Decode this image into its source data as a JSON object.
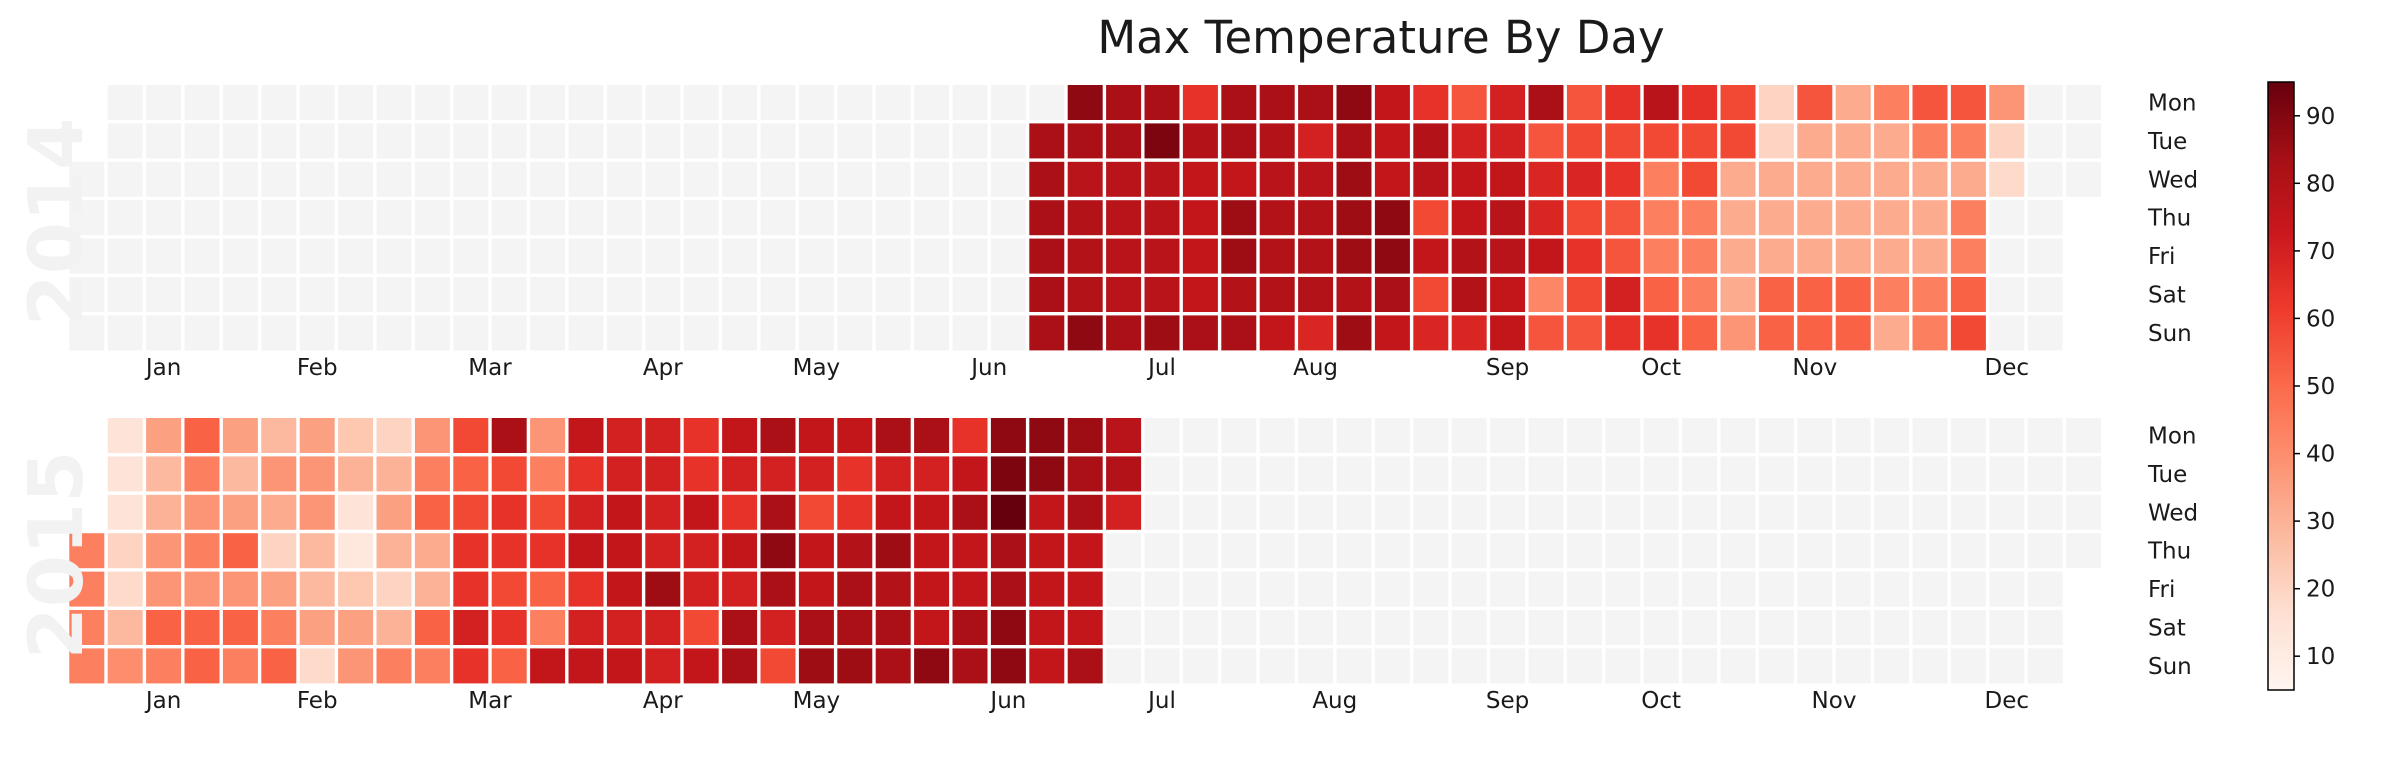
{
  "chart_data": {
    "type": "heatmap",
    "title": "Max Temperature By Day",
    "day_labels": [
      "Mon",
      "Tue",
      "Wed",
      "Thu",
      "Fri",
      "Sat",
      "Sun"
    ],
    "month_labels": [
      "Jan",
      "Feb",
      "Mar",
      "Apr",
      "May",
      "Jun",
      "Jul",
      "Aug",
      "Sep",
      "Oct",
      "Nov",
      "Dec"
    ],
    "colorbar": {
      "min": 5,
      "max": 95,
      "ticks": [
        10,
        20,
        30,
        40,
        50,
        60,
        70,
        80,
        90
      ],
      "colormap": "Reds"
    },
    "empty_color": "#f4f4f4",
    "years": [
      {
        "year": "2014",
        "start_date": "2014-06-24",
        "weeks": [
          [
            null,
            82,
            82,
            82,
            82,
            82,
            82
          ],
          [
            88,
            82,
            78,
            80,
            80,
            80,
            88
          ],
          [
            82,
            82,
            78,
            78,
            78,
            78,
            82
          ],
          [
            82,
            91,
            78,
            78,
            78,
            78,
            85
          ],
          [
            64,
            80,
            75,
            75,
            75,
            75,
            82
          ],
          [
            82,
            82,
            75,
            85,
            85,
            80,
            82
          ],
          [
            82,
            80,
            78,
            80,
            80,
            80,
            75
          ],
          [
            82,
            70,
            78,
            80,
            80,
            80,
            68
          ],
          [
            88,
            82,
            85,
            85,
            85,
            80,
            85
          ],
          [
            75,
            75,
            75,
            88,
            88,
            82,
            75
          ],
          [
            64,
            80,
            78,
            58,
            75,
            58,
            68
          ],
          [
            55,
            70,
            75,
            75,
            80,
            80,
            68
          ],
          [
            70,
            70,
            75,
            78,
            78,
            75,
            75
          ],
          [
            82,
            55,
            68,
            68,
            75,
            42,
            55
          ],
          [
            55,
            58,
            68,
            58,
            64,
            58,
            55
          ],
          [
            64,
            58,
            64,
            55,
            55,
            70,
            64
          ],
          [
            78,
            58,
            44,
            44,
            44,
            52,
            64
          ],
          [
            64,
            58,
            58,
            44,
            44,
            44,
            52
          ],
          [
            58,
            58,
            32,
            32,
            32,
            32,
            38
          ],
          [
            20,
            20,
            32,
            32,
            32,
            52,
            52
          ],
          [
            55,
            32,
            32,
            32,
            32,
            52,
            52
          ],
          [
            32,
            32,
            32,
            32,
            32,
            52,
            52
          ],
          [
            44,
            32,
            32,
            32,
            32,
            44,
            32
          ],
          [
            55,
            44,
            32,
            32,
            32,
            44,
            44
          ],
          [
            55,
            44,
            32,
            44,
            44,
            52,
            58
          ],
          [
            38,
            20,
            18,
            null,
            null,
            null,
            null
          ]
        ]
      },
      {
        "year": "2015",
        "start_date": "2015-01-01",
        "weeks": [
          [
            null,
            null,
            null,
            44,
            44,
            44,
            44
          ],
          [
            14,
            14,
            14,
            20,
            18,
            28,
            40
          ],
          [
            35,
            28,
            30,
            38,
            38,
            52,
            44
          ],
          [
            52,
            44,
            38,
            44,
            38,
            52,
            52
          ],
          [
            35,
            28,
            35,
            52,
            38,
            52,
            44
          ],
          [
            28,
            38,
            32,
            20,
            35,
            44,
            52
          ],
          [
            35,
            38,
            38,
            28,
            28,
            35,
            18
          ],
          [
            24,
            30,
            14,
            12,
            24,
            35,
            38
          ],
          [
            20,
            30,
            35,
            30,
            20,
            30,
            44
          ],
          [
            38,
            44,
            52,
            32,
            30,
            52,
            44
          ],
          [
            58,
            52,
            58,
            64,
            64,
            70,
            64
          ],
          [
            82,
            58,
            64,
            64,
            58,
            64,
            52
          ],
          [
            38,
            44,
            58,
            64,
            52,
            44,
            75
          ],
          [
            75,
            64,
            70,
            75,
            64,
            70,
            75
          ],
          [
            70,
            70,
            75,
            75,
            75,
            70,
            75
          ],
          [
            70,
            70,
            70,
            70,
            85,
            70,
            70
          ],
          [
            64,
            64,
            75,
            70,
            70,
            58,
            75
          ],
          [
            75,
            70,
            64,
            75,
            70,
            82,
            82
          ],
          [
            82,
            70,
            82,
            88,
            82,
            70,
            58
          ],
          [
            75,
            70,
            58,
            75,
            75,
            82,
            85
          ],
          [
            75,
            64,
            64,
            80,
            82,
            82,
            85
          ],
          [
            82,
            70,
            75,
            85,
            80,
            82,
            82
          ],
          [
            82,
            70,
            75,
            75,
            75,
            75,
            88
          ],
          [
            64,
            75,
            82,
            75,
            75,
            82,
            82
          ],
          [
            88,
            91,
            95,
            82,
            82,
            88,
            88
          ],
          [
            88,
            88,
            75,
            75,
            75,
            75,
            75
          ],
          [
            85,
            82,
            82,
            75,
            75,
            75,
            82
          ],
          [
            78,
            80,
            70,
            null,
            null,
            null,
            null
          ]
        ]
      }
    ]
  }
}
